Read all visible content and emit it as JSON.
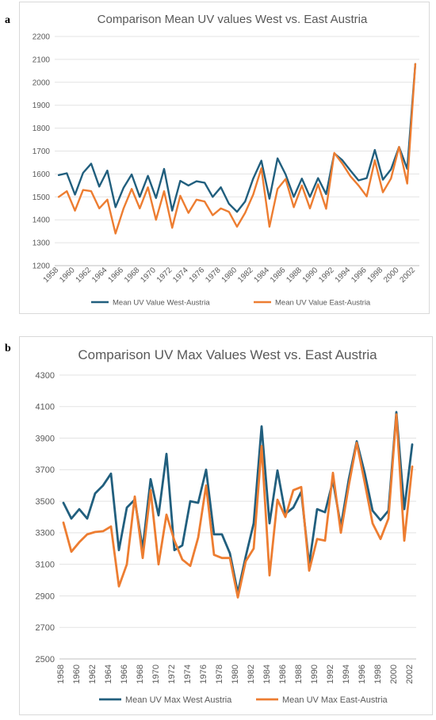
{
  "panels": [
    {
      "letter": "a",
      "chart_data": {
        "type": "line",
        "title": "Comparison Mean UV values West vs. East Austria",
        "xlabel": "",
        "ylabel": "",
        "ylim": [
          1200,
          2200
        ],
        "yticks": [
          1200,
          1300,
          1400,
          1500,
          1600,
          1700,
          1800,
          1900,
          2000,
          2100,
          2200
        ],
        "x": [
          1958,
          1959,
          1960,
          1961,
          1962,
          1963,
          1964,
          1965,
          1966,
          1967,
          1968,
          1969,
          1970,
          1971,
          1972,
          1973,
          1974,
          1975,
          1976,
          1977,
          1978,
          1979,
          1980,
          1981,
          1982,
          1983,
          1984,
          1985,
          1986,
          1987,
          1988,
          1989,
          1990,
          1991,
          1992,
          1993,
          1994,
          1995,
          1996,
          1997,
          1998,
          1999,
          2000,
          2001,
          2002
        ],
        "xtick_labels": [
          "1958",
          "1960",
          "1962",
          "1964",
          "1966",
          "1968",
          "1970",
          "1972",
          "1974",
          "1976",
          "1978",
          "1980",
          "1982",
          "1984",
          "1986",
          "1988",
          "1990",
          "1992",
          "1994",
          "1996",
          "1998",
          "2000",
          "2002"
        ],
        "grid": true,
        "legend_position": "bottom",
        "series": [
          {
            "name": "Mean UV Value West-Austria",
            "color": "#215F7E",
            "values": [
              1595,
              1603,
              1510,
              1605,
              1645,
              1545,
              1615,
              1455,
              1540,
              1598,
              1500,
              1592,
              1495,
              1622,
              1440,
              1570,
              1550,
              1568,
              1562,
              1500,
              1542,
              1470,
              1435,
              1480,
              1580,
              1658,
              1492,
              1668,
              1598,
              1500,
              1580,
              1500,
              1582,
              1512,
              1690,
              1660,
              1615,
              1572,
              1582,
              1705,
              1575,
              1620,
              1718,
              1622,
              2080
            ]
          },
          {
            "name": "Mean UV Value East-Austria",
            "color": "#ED7D31",
            "values": [
              1500,
              1525,
              1440,
              1530,
              1525,
              1450,
              1488,
              1340,
              1450,
              1535,
              1450,
              1542,
              1400,
              1525,
              1365,
              1505,
              1430,
              1488,
              1480,
              1420,
              1450,
              1435,
              1370,
              1430,
              1510,
              1625,
              1370,
              1535,
              1578,
              1455,
              1550,
              1450,
              1555,
              1448,
              1692,
              1645,
              1590,
              1550,
              1502,
              1660,
              1520,
              1580,
              1718,
              1558,
              2080
            ]
          }
        ]
      }
    },
    {
      "letter": "b",
      "chart_data": {
        "type": "line",
        "title": "Comparison UV Max Values West vs. East Austria",
        "xlabel": "",
        "ylabel": "",
        "ylim": [
          2500,
          4300
        ],
        "yticks": [
          2500,
          2700,
          2900,
          3100,
          3300,
          3500,
          3700,
          3900,
          4100,
          4300
        ],
        "x": [
          1958,
          1959,
          1960,
          1961,
          1962,
          1963,
          1964,
          1965,
          1966,
          1967,
          1968,
          1969,
          1970,
          1971,
          1972,
          1973,
          1974,
          1975,
          1976,
          1977,
          1978,
          1979,
          1980,
          1981,
          1982,
          1983,
          1984,
          1985,
          1986,
          1987,
          1988,
          1989,
          1990,
          1991,
          1992,
          1993,
          1994,
          1995,
          1996,
          1997,
          1998,
          1999,
          2000,
          2001,
          2002
        ],
        "xtick_labels": [
          "1958",
          "1960",
          "1962",
          "1964",
          "1966",
          "1968",
          "1970",
          "1972",
          "1974",
          "1976",
          "1978",
          "1980",
          "1982",
          "1984",
          "1986",
          "1988",
          "1990",
          "1992",
          "1994",
          "1996",
          "1998",
          "2000",
          "2002"
        ],
        "grid": true,
        "legend_position": "bottom",
        "series": [
          {
            "name": "Mean UV Max West Austria",
            "color": "#215F7E",
            "values": [
              3490,
              3390,
              3450,
              3390,
              3550,
              3600,
              3675,
              3190,
              3460,
              3510,
              3200,
              3640,
              3410,
              3800,
              3190,
              3220,
              3500,
              3490,
              3700,
              3290,
              3290,
              3170,
              2920,
              3150,
              3360,
              3975,
              3360,
              3695,
              3420,
              3460,
              3560,
              3100,
              3450,
              3430,
              3630,
              3340,
              3640,
              3880,
              3680,
              3440,
              3380,
              3440,
              4065,
              3450,
              3860
            ]
          },
          {
            "name": "Mean UV Max East-Austria",
            "color": "#ED7D31",
            "values": [
              3365,
              3180,
              3240,
              3290,
              3305,
              3310,
              3340,
              2960,
              3100,
              3530,
              3140,
              3570,
              3100,
              3415,
              3250,
              3130,
              3090,
              3270,
              3600,
              3160,
              3140,
              3140,
              2890,
              3120,
              3200,
              3850,
              3030,
              3510,
              3400,
              3570,
              3590,
              3060,
              3260,
              3250,
              3680,
              3300,
              3600,
              3870,
              3620,
              3360,
              3260,
              3390,
              4050,
              3250,
              3720
            ]
          }
        ]
      }
    }
  ]
}
